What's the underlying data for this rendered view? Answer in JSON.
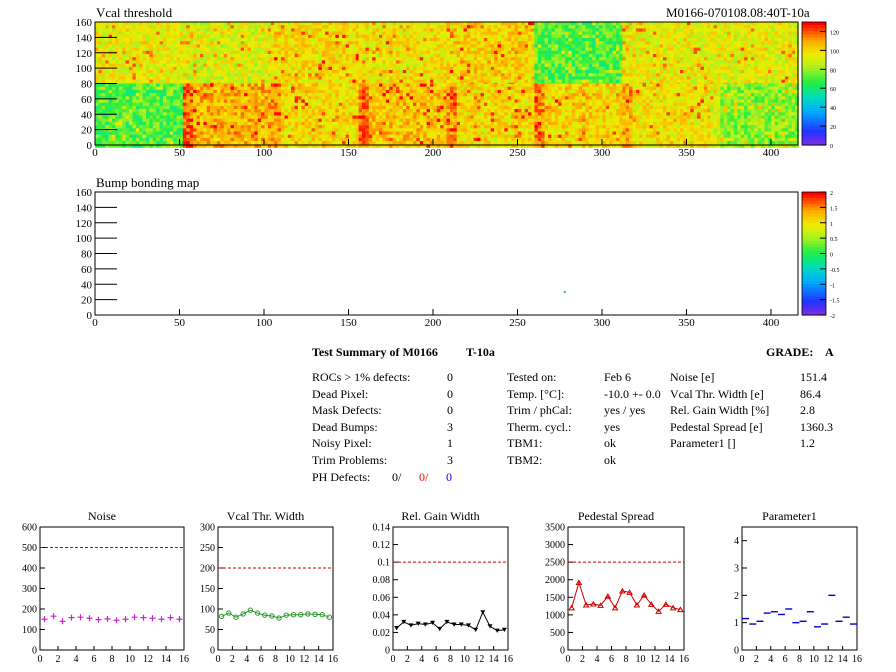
{
  "header": {
    "map1_title": "Vcal threshold",
    "map2_title": "Bump bonding map",
    "module_id": "M0166-070108.08:40T-10a"
  },
  "summary": {
    "title": "Test Summary of M0166",
    "test": "T-10a",
    "grade_label": "GRADE:",
    "grade": "A",
    "left_rows": [
      {
        "label": "ROCs > 1% defects:",
        "value": "0"
      },
      {
        "label": "Dead Pixel:",
        "value": "0"
      },
      {
        "label": "Mask Defects:",
        "value": "0"
      },
      {
        "label": "Dead Bumps:",
        "value": "3"
      },
      {
        "label": "Noisy Pixel:",
        "value": "1"
      },
      {
        "label": "Trim Problems:",
        "value": "3"
      }
    ],
    "ph_defects": {
      "label": "PH Defects:",
      "v1": "0/",
      "v2": "0/",
      "v3": "0"
    },
    "mid_rows": [
      {
        "label": "Tested on:",
        "value": "Feb 6"
      },
      {
        "label": "Temp. [°C]:",
        "value": "-10.0 +- 0.0"
      },
      {
        "label": "Trim / phCal:",
        "value": "yes / yes"
      },
      {
        "label": "Therm. cycl.:",
        "value": "yes"
      },
      {
        "label": "TBM1:",
        "value": "ok"
      },
      {
        "label": "TBM2:",
        "value": "ok"
      }
    ],
    "right_rows": [
      {
        "label": "Noise [e]",
        "value": "151.4"
      },
      {
        "label": "Vcal Thr. Width [e]",
        "value": "86.4"
      },
      {
        "label": "Rel. Gain Width [%]",
        "value": "2.8"
      },
      {
        "label": "Pedestal Spread [e]",
        "value": "1360.3"
      },
      {
        "label": "Parameter1 []",
        "value": "1.2"
      }
    ]
  },
  "colors": {
    "noise": "#cc22cc",
    "vcal": "#2a9a2a",
    "gain": "#000000",
    "pedestal": "#cc0000",
    "param1": "#0000cc",
    "limit": "#cc0000",
    "ph2": "#ff0000",
    "ph3": "#0000ff"
  },
  "chart_data": [
    {
      "type": "heatmap",
      "title": "Vcal threshold",
      "xlim": [
        0,
        416
      ],
      "ylim": [
        0,
        160
      ],
      "x_ticks": [
        "0",
        "50",
        "100",
        "150",
        "200",
        "250",
        "300",
        "350",
        "400"
      ],
      "y_ticks": [
        "0",
        "20",
        "40",
        "60",
        "80",
        "100",
        "120",
        "140",
        "160"
      ],
      "colorbar": {
        "range": [
          0,
          130
        ],
        "ticks": [
          "0",
          "20",
          "40",
          "60",
          "80",
          "100",
          "120"
        ]
      },
      "roc_means_top": [
        95,
        92,
        100,
        98,
        102,
        72,
        95,
        94
      ],
      "roc_means_bottom": [
        72,
        108,
        100,
        105,
        100,
        102,
        98,
        80
      ]
    },
    {
      "type": "heatmap",
      "title": "Bump bonding map",
      "xlim": [
        0,
        416
      ],
      "ylim": [
        0,
        160
      ],
      "x_ticks": [
        "0",
        "50",
        "100",
        "150",
        "200",
        "250",
        "300",
        "350",
        "400"
      ],
      "y_ticks": [
        "0",
        "20",
        "40",
        "60",
        "80",
        "100",
        "120",
        "140",
        "160"
      ],
      "colorbar": {
        "range": [
          -2,
          2
        ],
        "ticks": [
          "2",
          "1.5",
          "1",
          "0.5",
          "0",
          "-0.5",
          "-1",
          "-1.5",
          "-2"
        ]
      },
      "points": [
        {
          "x": 278,
          "y": 30
        }
      ]
    },
    {
      "type": "scatter",
      "title": "Noise",
      "xlim": [
        0,
        16
      ],
      "ylim": [
        0,
        600
      ],
      "limit": 500,
      "x_ticks": [
        "0",
        "2",
        "4",
        "6",
        "8",
        "10",
        "12",
        "14",
        "16"
      ],
      "y_ticks": [
        "0",
        "100",
        "200",
        "300",
        "400",
        "500",
        "600"
      ],
      "x": [
        0,
        1,
        2,
        3,
        4,
        5,
        6,
        7,
        8,
        9,
        10,
        11,
        12,
        13,
        14,
        15
      ],
      "values": [
        150,
        165,
        140,
        158,
        160,
        155,
        148,
        152,
        145,
        150,
        160,
        158,
        155,
        150,
        158,
        150
      ]
    },
    {
      "type": "line",
      "title": "Vcal Thr. Width",
      "xlim": [
        0,
        16
      ],
      "ylim": [
        0,
        300
      ],
      "limit": 200,
      "x_ticks": [
        "0",
        "2",
        "4",
        "6",
        "8",
        "10",
        "12",
        "14",
        "16"
      ],
      "y_ticks": [
        "0",
        "50",
        "100",
        "150",
        "200",
        "250",
        "300"
      ],
      "x": [
        0,
        1,
        2,
        3,
        4,
        5,
        6,
        7,
        8,
        9,
        10,
        11,
        12,
        13,
        14,
        15
      ],
      "values": [
        82,
        90,
        80,
        88,
        97,
        90,
        85,
        83,
        78,
        85,
        86,
        86,
        88,
        87,
        86,
        80
      ]
    },
    {
      "type": "line",
      "title": "Rel. Gain Width",
      "xlim": [
        0,
        16
      ],
      "ylim": [
        0,
        0.14
      ],
      "limit": 0.1,
      "x_ticks": [
        "0",
        "2",
        "4",
        "6",
        "8",
        "10",
        "12",
        "14",
        "16"
      ],
      "y_ticks": [
        "0",
        "0.02",
        "0.04",
        "0.06",
        "0.08",
        "0.1",
        "0.12",
        "0.14"
      ],
      "x": [
        0,
        1,
        2,
        3,
        4,
        5,
        6,
        7,
        8,
        9,
        10,
        11,
        12,
        13,
        14,
        15
      ],
      "values": [
        0.025,
        0.032,
        0.028,
        0.03,
        0.029,
        0.031,
        0.024,
        0.032,
        0.029,
        0.029,
        0.028,
        0.023,
        0.043,
        0.027,
        0.022,
        0.023
      ]
    },
    {
      "type": "line",
      "title": "Pedestal Spread",
      "xlim": [
        0,
        16
      ],
      "ylim": [
        0,
        3500
      ],
      "limit": 2500,
      "x_ticks": [
        "0",
        "2",
        "4",
        "6",
        "8",
        "10",
        "12",
        "14",
        "16"
      ],
      "y_ticks": [
        "0",
        "500",
        "1000",
        "1500",
        "2000",
        "2500",
        "3000",
        "3500"
      ],
      "x": [
        0,
        1,
        2,
        3,
        4,
        5,
        6,
        7,
        8,
        9,
        10,
        11,
        12,
        13,
        14,
        15
      ],
      "values": [
        1200,
        1920,
        1280,
        1310,
        1270,
        1530,
        1200,
        1680,
        1640,
        1280,
        1560,
        1300,
        1100,
        1300,
        1200,
        1150
      ]
    },
    {
      "type": "scatter",
      "title": "Parameter1",
      "xlim": [
        0,
        16
      ],
      "ylim": [
        0,
        4.5
      ],
      "x_ticks": [
        "0",
        "2",
        "4",
        "6",
        "8",
        "10",
        "12",
        "14",
        "16"
      ],
      "y_ticks": [
        "0",
        "1",
        "2",
        "3",
        "4"
      ],
      "x": [
        0,
        1,
        2,
        3,
        4,
        5,
        6,
        7,
        8,
        9,
        10,
        11,
        12,
        13,
        14,
        15
      ],
      "values": [
        1.15,
        0.95,
        1.05,
        1.35,
        1.4,
        1.3,
        1.5,
        1.0,
        1.05,
        1.4,
        0.85,
        0.95,
        2.0,
        1.05,
        1.2,
        0.95
      ]
    }
  ]
}
